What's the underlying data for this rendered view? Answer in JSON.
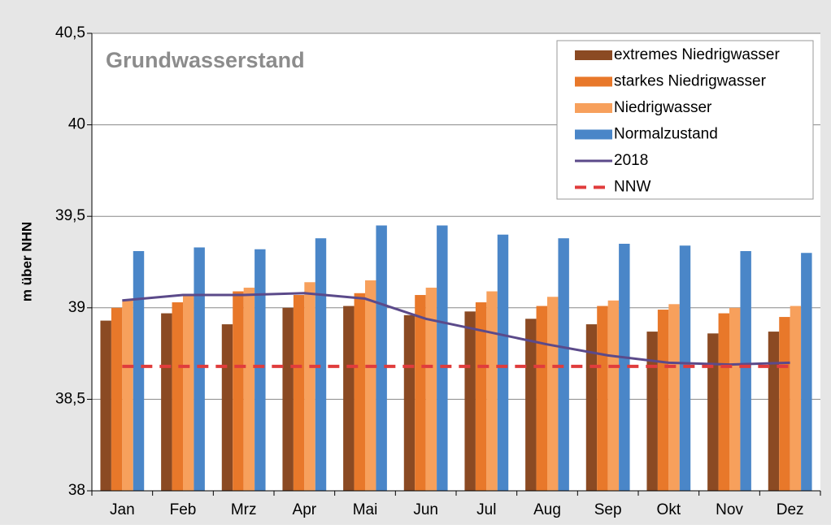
{
  "chart_data": {
    "type": "bar",
    "title": "Grundwasserstand",
    "y_label": "m über NHN",
    "categories": [
      "Jan",
      "Feb",
      "Mrz",
      "Apr",
      "Mai",
      "Jun",
      "Jul",
      "Aug",
      "Sep",
      "Okt",
      "Nov",
      "Dez"
    ],
    "series": [
      {
        "name": "extremes Niedrigwasser",
        "color": "#8b4a23",
        "values": [
          38.93,
          38.97,
          38.91,
          39.0,
          39.01,
          38.96,
          38.98,
          38.94,
          38.91,
          38.87,
          38.86,
          38.87
        ]
      },
      {
        "name": "starkes Niedrigwasser",
        "color": "#e8782a",
        "values": [
          39.0,
          39.03,
          39.09,
          39.07,
          39.08,
          39.07,
          39.03,
          39.01,
          39.01,
          38.99,
          38.97,
          38.95
        ]
      },
      {
        "name": "Niedrigwasser",
        "color": "#f7a05c",
        "values": [
          39.04,
          39.07,
          39.11,
          39.14,
          39.15,
          39.11,
          39.09,
          39.06,
          39.04,
          39.02,
          39.0,
          39.01
        ]
      },
      {
        "name": "Normalzustand",
        "color": "#4a86c8",
        "values": [
          39.31,
          39.33,
          39.32,
          39.38,
          39.45,
          39.45,
          39.4,
          39.38,
          39.35,
          39.34,
          39.31,
          39.3
        ]
      },
      {
        "name": "2018",
        "type": "line",
        "color": "#5b4a8a",
        "values": [
          39.04,
          39.07,
          39.07,
          39.08,
          39.05,
          38.94,
          38.87,
          38.8,
          38.74,
          38.7,
          38.69,
          38.7
        ]
      },
      {
        "name": "NNW",
        "type": "line",
        "dashed": true,
        "color": "#e03c3c",
        "values": [
          38.68,
          38.68,
          38.68,
          38.68,
          38.68,
          38.68,
          38.68,
          38.68,
          38.68,
          38.68,
          38.68,
          38.68
        ]
      }
    ],
    "ylim": [
      38,
      40.5
    ],
    "yticks": [
      38,
      {
        "value": 38.5,
        "label": "38,5"
      },
      39,
      {
        "value": 39.5,
        "label": "39,5"
      },
      40,
      {
        "value": 40.5,
        "label": "40,5"
      }
    ],
    "grid": true,
    "legend": "top-right"
  }
}
